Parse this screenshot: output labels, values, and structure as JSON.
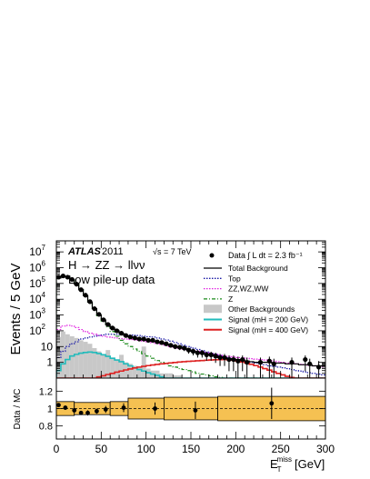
{
  "chart_data": [
    {
      "type": "histogram",
      "xlabel_main": "E",
      "xlabel_sub": "T",
      "xlabel_sup": "miss",
      "xlabel_unit": "[GeV]",
      "ylabel": "Events / 5 GeV",
      "xlim": [
        0,
        300
      ],
      "ylim": [
        0.1,
        50000000
      ],
      "yscale": "log",
      "x_ticks": [
        0,
        50,
        100,
        150,
        200,
        250,
        300
      ],
      "y_ticks": [
        {
          "v": 1,
          "label": "1"
        },
        {
          "v": 10,
          "label": "10"
        },
        {
          "v": 100,
          "label": "10",
          "exp": "2"
        },
        {
          "v": 1000,
          "label": "10",
          "exp": "3"
        },
        {
          "v": 10000,
          "label": "10",
          "exp": "4"
        },
        {
          "v": 100000,
          "label": "10",
          "exp": "5"
        },
        {
          "v": 1000000,
          "label": "10",
          "exp": "6"
        },
        {
          "v": 10000000,
          "label": "10",
          "exp": "7"
        }
      ],
      "annotations": {
        "atlas": "ATLAS",
        "year": "2011",
        "process": "H → ZZ → llνν",
        "condition": "Low pile-up data",
        "energy": "√s = 7 TeV",
        "lumi": "Data ∫ L dt = 2.3 fb⁻¹"
      },
      "legend_placement": "top-right",
      "legend": [
        {
          "label": "Total Background",
          "style": "solid",
          "color": "#000000"
        },
        {
          "label": "Top",
          "style": "dotted",
          "color": "#1a1aa6"
        },
        {
          "label": "ZZ,WZ,WW",
          "style": "dotted",
          "color": "#e020e0"
        },
        {
          "label": "Z",
          "style": "dashdot",
          "color": "#1a8a1a"
        },
        {
          "label": "Other Backgrounds",
          "style": "fill",
          "color": "#c8c8c8"
        },
        {
          "label": "Signal (mH = 200 GeV)",
          "style": "solid",
          "color": "#22bbbb"
        },
        {
          "label": "Signal (mH = 400 GeV)",
          "style": "solid",
          "color": "#dd2222"
        }
      ],
      "bin_edges_step": 5,
      "series": [
        {
          "name": "Data",
          "kind": "points",
          "x": [
            2.5,
            7.5,
            12.5,
            17.5,
            22.5,
            27.5,
            32.5,
            37.5,
            42.5,
            47.5,
            52.5,
            57.5,
            62.5,
            67.5,
            72.5,
            77.5,
            82.5,
            87.5,
            92.5,
            97.5,
            102.5,
            107.5,
            112.5,
            117.5,
            122.5,
            127.5,
            132.5,
            137.5,
            142.5,
            147.5,
            152.5,
            157.5,
            162.5,
            167.5,
            172.5,
            177.5,
            182.5,
            187.5,
            192.5,
            197.5,
            202.5,
            207.5,
            212.5,
            227.5,
            237.5,
            242.5,
            262.5,
            277.5,
            282.5,
            292.5
          ],
          "y": [
            250000,
            300000,
            250000,
            180000,
            90000,
            40000,
            18000,
            7000,
            2500,
            1100,
            500,
            250,
            150,
            100,
            70,
            50,
            40,
            35,
            30,
            30,
            25,
            25,
            20,
            18,
            15,
            12,
            10,
            9,
            8,
            6,
            5,
            4,
            4,
            3,
            3,
            2.5,
            2,
            2,
            1.5,
            1.5,
            1.2,
            1.5,
            1,
            1,
            1.2,
            0.8,
            1,
            1.5,
            0.8,
            0.5
          ]
        },
        {
          "name": "Total Background",
          "kind": "step",
          "values": [
            220000,
            280000,
            250000,
            170000,
            90000,
            40000,
            17000,
            6500,
            2500,
            1000,
            480,
            250,
            150,
            100,
            70,
            50,
            40,
            35,
            30,
            28,
            25,
            22,
            20,
            17,
            14,
            12,
            10,
            9,
            8,
            6,
            5,
            4.2,
            3.8,
            3.2,
            2.8,
            2.5,
            2,
            1.9,
            1.7,
            1.6,
            1.5,
            1.4,
            1.2,
            1.1,
            1,
            1,
            1,
            1,
            0.9,
            0.9,
            0.9,
            0.8,
            0.8,
            0.8,
            0.7,
            0.7,
            0.7,
            0.6,
            0.6,
            0.6
          ]
        },
        {
          "name": "Top",
          "kind": "step",
          "values": [
            2,
            5,
            10,
            15,
            20,
            30,
            35,
            40,
            45,
            50,
            55,
            60,
            60,
            60,
            58,
            56,
            55,
            52,
            50,
            45,
            42,
            40,
            35,
            30,
            26,
            22,
            18,
            15,
            12,
            10,
            8,
            6.5,
            5.5,
            4.5,
            3.8,
            3.2,
            2.7,
            2.3,
            2,
            1.7,
            1.5,
            1.3,
            1.1,
            1,
            0.9,
            0.8,
            0.7,
            0.6,
            0.55,
            0.5,
            0.45,
            0.4,
            0.35,
            0.3,
            0.28,
            0.25,
            0.22,
            0.2,
            0.18,
            0.16
          ]
        },
        {
          "name": "ZZ,WZ,WW",
          "kind": "step",
          "values": [
            120,
            200,
            220,
            200,
            160,
            120,
            90,
            70,
            60,
            50,
            45,
            40,
            38,
            35,
            32,
            30,
            28,
            26,
            24,
            22,
            20,
            18,
            16,
            14,
            12,
            10,
            9,
            8,
            7,
            6,
            5.5,
            5,
            4.5,
            4,
            3.5,
            3.2,
            2.9,
            2.6,
            2.4,
            2.2,
            2,
            1.9,
            1.8,
            1.7,
            1.6,
            1.5,
            1.4,
            1.3,
            1.2,
            1.1,
            1,
            0.9,
            0.85,
            0.8,
            0.75,
            0.7,
            0.65,
            0.6,
            0.55,
            0.5
          ]
        },
        {
          "name": "Z",
          "kind": "step",
          "values": [
            220000,
            280000,
            250000,
            170000,
            90000,
            40000,
            17000,
            6500,
            2400,
            900,
            400,
            180,
            90,
            45,
            25,
            15,
            10,
            7,
            5,
            3.5,
            2.5,
            1.8,
            1.3,
            1,
            0.8,
            0.6,
            0.5,
            0.4,
            0.35,
            0.3,
            0.25,
            0.2,
            0.18,
            0.16,
            0.14,
            0.12,
            0.11,
            0.1,
            0.1,
            0.1,
            0.1,
            0.1,
            0.1,
            0.1,
            0.1,
            0.1,
            0.1,
            0.1,
            0.1,
            0.1,
            0.1,
            0.1,
            0.1,
            0.1,
            0.1,
            0.1,
            0.1,
            0.1,
            0.1,
            0.1
          ]
        },
        {
          "name": "Other Backgrounds",
          "kind": "fill",
          "values": [
            40,
            90,
            60,
            45,
            35,
            25,
            20,
            15,
            8,
            5,
            3,
            6,
            2,
            1.5,
            3,
            1,
            0.8,
            0.6,
            0.5,
            10,
            0.4,
            0.3,
            0.3,
            0.2,
            0.2,
            0.2,
            0.15,
            0.15,
            0.1,
            0.1,
            0.1,
            0.1,
            0.1,
            0.1,
            0.1,
            0.1,
            0.1,
            0.1,
            0.1,
            0.1,
            0.1,
            0.1,
            0.1,
            0.1,
            0.1,
            0.1,
            0.1,
            0.1,
            0.1,
            0.1,
            0.1,
            0.1,
            0.1,
            0.1,
            0.1,
            0.1,
            0.1,
            0.1,
            0.1,
            0.1
          ]
        },
        {
          "name": "Signal (mH = 200 GeV)",
          "kind": "step",
          "values": [
            0.3,
            0.8,
            1.5,
            2.5,
            3.2,
            3.8,
            4.2,
            4.5,
            4.2,
            3.6,
            3,
            2.4,
            1.8,
            1.4,
            1.1,
            0.8,
            0.6,
            0.45,
            0.35,
            0.28,
            0.22,
            0.18,
            0.15,
            0.12,
            0.1,
            0.1,
            0.1,
            0.1,
            0.1,
            0.1,
            0.1,
            0.1,
            0.1,
            0.1,
            0.1,
            0.1,
            0.1,
            0.1,
            0.1,
            0.1,
            0.1,
            0.1,
            0.1,
            0.1,
            0.1,
            0.1,
            0.1,
            0.1,
            0.1,
            0.1,
            0.1,
            0.1,
            0.1,
            0.1,
            0.1,
            0.1,
            0.1,
            0.1,
            0.1,
            0.1
          ]
        },
        {
          "name": "Signal (mH = 400 GeV)",
          "kind": "step",
          "values": [
            0.1,
            0.1,
            0.1,
            0.1,
            0.1,
            0.1,
            0.1,
            0.1,
            0.1,
            0.12,
            0.14,
            0.17,
            0.2,
            0.24,
            0.28,
            0.33,
            0.38,
            0.44,
            0.5,
            0.56,
            0.62,
            0.68,
            0.74,
            0.8,
            0.86,
            0.92,
            0.98,
            1.04,
            1.1,
            1.15,
            1.2,
            1.25,
            1.3,
            1.35,
            1.4,
            1.45,
            1.48,
            1.5,
            1.45,
            1.35,
            1.2,
            1.05,
            0.9,
            0.75,
            0.62,
            0.5,
            0.4,
            0.32,
            0.25,
            0.2,
            0.16,
            0.13,
            0.11,
            0.1,
            0.1,
            0.1,
            0.1,
            0.1,
            0.1,
            0.1
          ]
        }
      ]
    },
    {
      "type": "ratio",
      "ylabel": "Data / MC",
      "xlim": [
        0,
        300
      ],
      "ylim": [
        0.65,
        1.35
      ],
      "y_ticks": [
        {
          "v": 0.8,
          "label": "0.8"
        },
        {
          "v": 1.0,
          "label": "1"
        },
        {
          "v": 1.2,
          "label": "1.2"
        }
      ],
      "x_ticks": [
        0,
        50,
        100,
        150,
        200,
        250,
        300
      ],
      "band": [
        {
          "x0": 0,
          "x1": 20,
          "lo": 0.92,
          "hi": 1.08
        },
        {
          "x0": 20,
          "x1": 60,
          "lo": 0.93,
          "hi": 1.07
        },
        {
          "x0": 60,
          "x1": 80,
          "lo": 0.92,
          "hi": 1.08
        },
        {
          "x0": 80,
          "x1": 120,
          "lo": 0.88,
          "hi": 1.12
        },
        {
          "x0": 120,
          "x1": 180,
          "lo": 0.87,
          "hi": 1.13
        },
        {
          "x0": 180,
          "x1": 300,
          "lo": 0.86,
          "hi": 1.14
        }
      ],
      "points": [
        {
          "x": 2.5,
          "y": 1.04,
          "err": 0.02
        },
        {
          "x": 10,
          "y": 1.01,
          "err": 0.02
        },
        {
          "x": 20,
          "y": 0.98,
          "err": 0.02
        },
        {
          "x": 27.5,
          "y": 0.95,
          "err": 0.02
        },
        {
          "x": 35,
          "y": 0.95,
          "err": 0.03
        },
        {
          "x": 45,
          "y": 0.97,
          "err": 0.03
        },
        {
          "x": 55,
          "y": 0.99,
          "err": 0.04
        },
        {
          "x": 75,
          "y": 1.01,
          "err": 0.05
        },
        {
          "x": 110,
          "y": 1.0,
          "err": 0.07
        },
        {
          "x": 155,
          "y": 0.98,
          "err": 0.1
        },
        {
          "x": 240,
          "y": 1.06,
          "err": 0.18
        }
      ]
    }
  ]
}
